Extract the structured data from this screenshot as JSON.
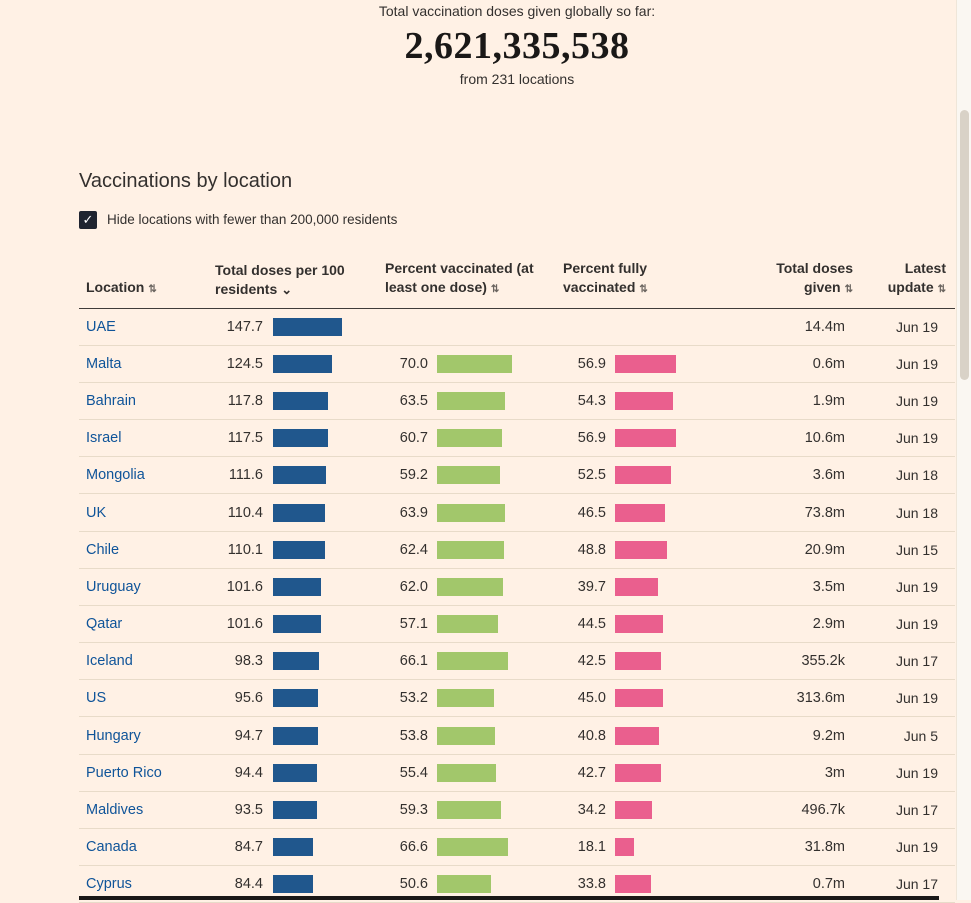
{
  "header": {
    "subtitle": "Total vaccination doses given globally so far:",
    "total": "2,621,335,538",
    "locations_note": "from 231 locations"
  },
  "section": {
    "title": "Vaccinations by location",
    "filter_label": "Hide locations with fewer than 200,000 residents",
    "filter_checked": true
  },
  "icons": {
    "sort_both": "⇅",
    "sort_desc": "⌄",
    "check": "✓"
  },
  "table": {
    "columns": [
      {
        "label": "Location",
        "sort": "both"
      },
      {
        "label": "Total doses per 100 residents",
        "sort": "desc"
      },
      {
        "label": "Percent vaccinated (at least one dose)",
        "sort": "both"
      },
      {
        "label": "Percent fully vaccinated",
        "sort": "both"
      },
      {
        "label": "Total doses given",
        "sort": "both"
      },
      {
        "label": "Latest update",
        "sort": "both"
      }
    ],
    "rows": [
      {
        "location": "UAE",
        "doses_per_100": "147.7",
        "pct_vaccinated": null,
        "pct_fully": null,
        "total_doses": "14.4m",
        "latest": "Jun 19"
      },
      {
        "location": "Malta",
        "doses_per_100": "124.5",
        "pct_vaccinated": "70.0",
        "pct_fully": "56.9",
        "total_doses": "0.6m",
        "latest": "Jun 19"
      },
      {
        "location": "Bahrain",
        "doses_per_100": "117.8",
        "pct_vaccinated": "63.5",
        "pct_fully": "54.3",
        "total_doses": "1.9m",
        "latest": "Jun 19"
      },
      {
        "location": "Israel",
        "doses_per_100": "117.5",
        "pct_vaccinated": "60.7",
        "pct_fully": "56.9",
        "total_doses": "10.6m",
        "latest": "Jun 19"
      },
      {
        "location": "Mongolia",
        "doses_per_100": "111.6",
        "pct_vaccinated": "59.2",
        "pct_fully": "52.5",
        "total_doses": "3.6m",
        "latest": "Jun 18"
      },
      {
        "location": "UK",
        "doses_per_100": "110.4",
        "pct_vaccinated": "63.9",
        "pct_fully": "46.5",
        "total_doses": "73.8m",
        "latest": "Jun 18"
      },
      {
        "location": "Chile",
        "doses_per_100": "110.1",
        "pct_vaccinated": "62.4",
        "pct_fully": "48.8",
        "total_doses": "20.9m",
        "latest": "Jun 15"
      },
      {
        "location": "Uruguay",
        "doses_per_100": "101.6",
        "pct_vaccinated": "62.0",
        "pct_fully": "39.7",
        "total_doses": "3.5m",
        "latest": "Jun 19"
      },
      {
        "location": "Qatar",
        "doses_per_100": "101.6",
        "pct_vaccinated": "57.1",
        "pct_fully": "44.5",
        "total_doses": "2.9m",
        "latest": "Jun 19"
      },
      {
        "location": "Iceland",
        "doses_per_100": "98.3",
        "pct_vaccinated": "66.1",
        "pct_fully": "42.5",
        "total_doses": "355.2k",
        "latest": "Jun 17"
      },
      {
        "location": "US",
        "doses_per_100": "95.6",
        "pct_vaccinated": "53.2",
        "pct_fully": "45.0",
        "total_doses": "313.6m",
        "latest": "Jun 19"
      },
      {
        "location": "Hungary",
        "doses_per_100": "94.7",
        "pct_vaccinated": "53.8",
        "pct_fully": "40.8",
        "total_doses": "9.2m",
        "latest": "Jun 5"
      },
      {
        "location": "Puerto Rico",
        "doses_per_100": "94.4",
        "pct_vaccinated": "55.4",
        "pct_fully": "42.7",
        "total_doses": "3m",
        "latest": "Jun 19"
      },
      {
        "location": "Maldives",
        "doses_per_100": "93.5",
        "pct_vaccinated": "59.3",
        "pct_fully": "34.2",
        "total_doses": "496.7k",
        "latest": "Jun 17"
      },
      {
        "location": "Canada",
        "doses_per_100": "84.7",
        "pct_vaccinated": "66.6",
        "pct_fully": "18.1",
        "total_doses": "31.8m",
        "latest": "Jun 19"
      },
      {
        "location": "Cyprus",
        "doses_per_100": "84.4",
        "pct_vaccinated": "50.6",
        "pct_fully": "33.8",
        "total_doses": "0.7m",
        "latest": "Jun 17"
      }
    ]
  },
  "colors": {
    "background": "#fff1e5",
    "text": "#33302e",
    "link": "#0f5499",
    "bar_blue": "#20578d",
    "bar_green": "#a2c76b",
    "bar_pink": "#ea5f8e",
    "checkbox": "#1f2430",
    "row_border": "#e8dbc9"
  }
}
